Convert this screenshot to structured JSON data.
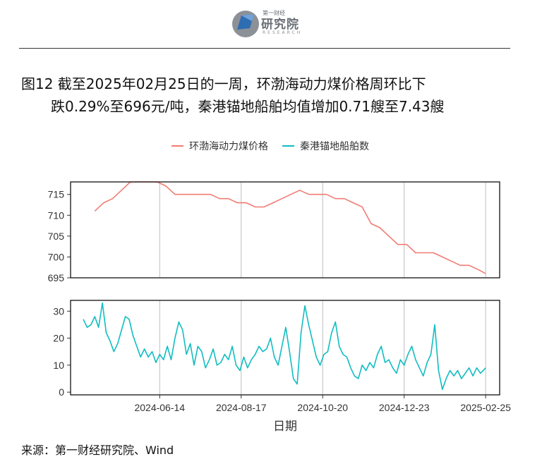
{
  "header": {
    "logo_small": "第一财经",
    "logo_main": "研究院",
    "logo_en": "RESEARCH"
  },
  "title": {
    "line1": "图12  截至2025年02月25日的一周，环渤海动力煤价格周环比下",
    "line2": "跌0.29%至696元/吨，秦港锚地船舶均值增加0.71艘至7.43艘"
  },
  "source": "来源：第一财经研究院、Wind",
  "colors": {
    "price": "#F07C73",
    "ships": "#11BDC1",
    "grid": "#bdbdbd"
  },
  "chart_data": {
    "type": "line",
    "xlabel": "日期",
    "x_ticks": [
      "2024-06-14",
      "2024-08-17",
      "2024-10-20",
      "2024-12-23",
      "2025-02-25"
    ],
    "x_range": [
      "2024-04-05",
      "2025-03-08"
    ],
    "legend_position": "top",
    "series": [
      {
        "name": "环渤海动力煤价格",
        "panel": "top",
        "ylim": [
          695,
          718
        ],
        "y_ticks": [
          695,
          700,
          705,
          710,
          715
        ],
        "points": [
          [
            "2024-04-24",
            711
          ],
          [
            "2024-05-01",
            713
          ],
          [
            "2024-05-08",
            714
          ],
          [
            "2024-05-15",
            716
          ],
          [
            "2024-05-22",
            718
          ],
          [
            "2024-05-29",
            718
          ],
          [
            "2024-06-05",
            718
          ],
          [
            "2024-06-12",
            718
          ],
          [
            "2024-06-19",
            717
          ],
          [
            "2024-06-26",
            715
          ],
          [
            "2024-07-03",
            715
          ],
          [
            "2024-07-10",
            715
          ],
          [
            "2024-07-17",
            715
          ],
          [
            "2024-07-24",
            715
          ],
          [
            "2024-07-31",
            714
          ],
          [
            "2024-08-07",
            714
          ],
          [
            "2024-08-14",
            713
          ],
          [
            "2024-08-21",
            713
          ],
          [
            "2024-08-28",
            712
          ],
          [
            "2024-09-04",
            712
          ],
          [
            "2024-09-11",
            713
          ],
          [
            "2024-09-18",
            714
          ],
          [
            "2024-09-25",
            715
          ],
          [
            "2024-10-02",
            716
          ],
          [
            "2024-10-09",
            715
          ],
          [
            "2024-10-16",
            715
          ],
          [
            "2024-10-23",
            715
          ],
          [
            "2024-10-30",
            714
          ],
          [
            "2024-11-06",
            714
          ],
          [
            "2024-11-13",
            713
          ],
          [
            "2024-11-20",
            712
          ],
          [
            "2024-11-27",
            708
          ],
          [
            "2024-12-04",
            707
          ],
          [
            "2024-12-11",
            705
          ],
          [
            "2024-12-18",
            703
          ],
          [
            "2024-12-25",
            703
          ],
          [
            "2025-01-01",
            701
          ],
          [
            "2025-01-08",
            701
          ],
          [
            "2025-01-15",
            701
          ],
          [
            "2025-01-22",
            700
          ],
          [
            "2025-01-29",
            699
          ],
          [
            "2025-02-05",
            698
          ],
          [
            "2025-02-12",
            698
          ],
          [
            "2025-02-19",
            697
          ],
          [
            "2025-02-25",
            696
          ]
        ]
      },
      {
        "name": "秦港锚地船舶数",
        "panel": "bottom",
        "ylim": [
          -1,
          34
        ],
        "y_ticks": [
          0,
          10,
          20,
          30
        ],
        "points": [
          [
            "2024-04-15",
            27
          ],
          [
            "2024-04-18",
            24
          ],
          [
            "2024-04-21",
            25
          ],
          [
            "2024-04-24",
            28
          ],
          [
            "2024-04-27",
            24
          ],
          [
            "2024-04-30",
            33
          ],
          [
            "2024-05-03",
            22
          ],
          [
            "2024-05-06",
            19
          ],
          [
            "2024-05-09",
            15
          ],
          [
            "2024-05-12",
            18
          ],
          [
            "2024-05-15",
            23
          ],
          [
            "2024-05-18",
            28
          ],
          [
            "2024-05-21",
            27
          ],
          [
            "2024-05-24",
            21
          ],
          [
            "2024-05-27",
            17
          ],
          [
            "2024-05-30",
            13
          ],
          [
            "2024-06-02",
            16
          ],
          [
            "2024-06-05",
            13
          ],
          [
            "2024-06-08",
            15
          ],
          [
            "2024-06-11",
            11
          ],
          [
            "2024-06-14",
            14
          ],
          [
            "2024-06-17",
            12
          ],
          [
            "2024-06-20",
            17
          ],
          [
            "2024-06-23",
            12
          ],
          [
            "2024-06-26",
            20
          ],
          [
            "2024-06-29",
            26
          ],
          [
            "2024-07-02",
            23
          ],
          [
            "2024-07-05",
            14
          ],
          [
            "2024-07-08",
            18
          ],
          [
            "2024-07-11",
            10
          ],
          [
            "2024-07-14",
            17
          ],
          [
            "2024-07-17",
            15
          ],
          [
            "2024-07-20",
            9
          ],
          [
            "2024-07-23",
            12
          ],
          [
            "2024-07-26",
            16
          ],
          [
            "2024-07-29",
            10
          ],
          [
            "2024-08-01",
            11
          ],
          [
            "2024-08-04",
            14
          ],
          [
            "2024-08-07",
            12
          ],
          [
            "2024-08-10",
            17
          ],
          [
            "2024-08-13",
            10
          ],
          [
            "2024-08-16",
            8
          ],
          [
            "2024-08-19",
            13
          ],
          [
            "2024-08-22",
            9
          ],
          [
            "2024-08-25",
            12
          ],
          [
            "2024-08-28",
            14
          ],
          [
            "2024-08-31",
            17
          ],
          [
            "2024-09-03",
            15
          ],
          [
            "2024-09-06",
            16
          ],
          [
            "2024-09-09",
            20
          ],
          [
            "2024-09-12",
            13
          ],
          [
            "2024-09-15",
            10
          ],
          [
            "2024-09-18",
            17
          ],
          [
            "2024-09-21",
            24
          ],
          [
            "2024-09-24",
            15
          ],
          [
            "2024-09-27",
            5
          ],
          [
            "2024-09-30",
            3
          ],
          [
            "2024-10-03",
            22
          ],
          [
            "2024-10-06",
            32
          ],
          [
            "2024-10-09",
            25
          ],
          [
            "2024-10-12",
            19
          ],
          [
            "2024-10-15",
            13
          ],
          [
            "2024-10-18",
            10
          ],
          [
            "2024-10-21",
            14
          ],
          [
            "2024-10-24",
            15
          ],
          [
            "2024-10-27",
            22
          ],
          [
            "2024-10-30",
            26
          ],
          [
            "2024-11-02",
            17
          ],
          [
            "2024-11-05",
            14
          ],
          [
            "2024-11-08",
            13
          ],
          [
            "2024-11-11",
            9
          ],
          [
            "2024-11-14",
            6
          ],
          [
            "2024-11-17",
            5
          ],
          [
            "2024-11-20",
            10
          ],
          [
            "2024-11-23",
            8
          ],
          [
            "2024-11-26",
            11
          ],
          [
            "2024-11-29",
            9
          ],
          [
            "2024-12-02",
            14
          ],
          [
            "2024-12-05",
            17
          ],
          [
            "2024-12-08",
            11
          ],
          [
            "2024-12-11",
            12
          ],
          [
            "2024-12-14",
            9
          ],
          [
            "2024-12-17",
            7
          ],
          [
            "2024-12-20",
            12
          ],
          [
            "2024-12-23",
            10
          ],
          [
            "2024-12-26",
            14
          ],
          [
            "2024-12-29",
            17
          ],
          [
            "2025-01-01",
            12
          ],
          [
            "2025-01-04",
            9
          ],
          [
            "2025-01-07",
            6
          ],
          [
            "2025-01-10",
            11
          ],
          [
            "2025-01-13",
            14
          ],
          [
            "2025-01-16",
            25
          ],
          [
            "2025-01-19",
            8
          ],
          [
            "2025-01-22",
            1
          ],
          [
            "2025-01-25",
            5
          ],
          [
            "2025-01-28",
            8
          ],
          [
            "2025-01-31",
            6
          ],
          [
            "2025-02-03",
            8
          ],
          [
            "2025-02-06",
            5
          ],
          [
            "2025-02-09",
            7
          ],
          [
            "2025-02-12",
            9
          ],
          [
            "2025-02-15",
            6
          ],
          [
            "2025-02-18",
            9
          ],
          [
            "2025-02-21",
            7
          ],
          [
            "2025-02-25",
            9
          ]
        ]
      }
    ]
  }
}
